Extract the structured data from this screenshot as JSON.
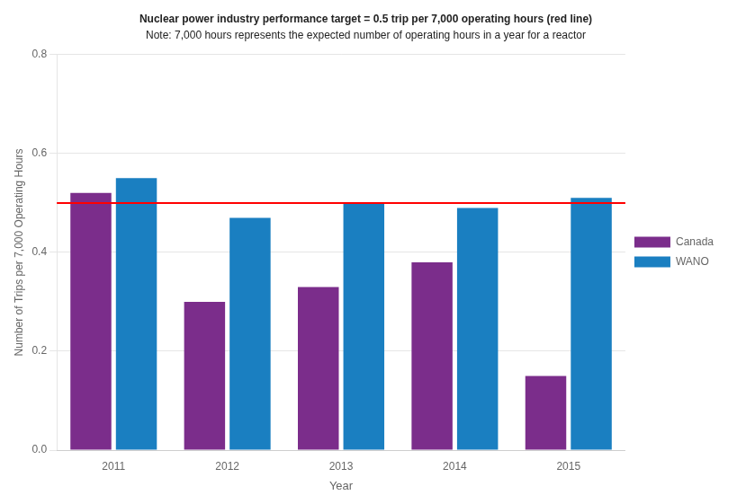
{
  "chart_data": {
    "type": "bar",
    "annotations": [
      "Nuclear power industry performance target = 0.5 trip per 7,000 operating hours (red line)",
      "Note: 7,000 hours represents the expected number of operating hours in a year for a reactor"
    ],
    "categories": [
      "2011",
      "2012",
      "2013",
      "2014",
      "2015"
    ],
    "series": [
      {
        "name": "Canada",
        "color": "#7B2D8B",
        "values": [
          0.52,
          0.3,
          0.33,
          0.38,
          0.15
        ]
      },
      {
        "name": "WANO",
        "color": "#1A7FC1",
        "values": [
          0.55,
          0.47,
          0.5,
          0.49,
          0.51
        ]
      }
    ],
    "reference_line": {
      "value": 0.5,
      "color": "red"
    },
    "xlabel": "Year",
    "ylabel": "Number of Trips per 7,000 Operating Hours",
    "ylim": [
      0.0,
      0.8
    ],
    "yticks": [
      {
        "value": 0,
        "label": "0.0"
      },
      0.2,
      0.4,
      0.6,
      0.8
    ],
    "grid": true,
    "legend": "right"
  }
}
